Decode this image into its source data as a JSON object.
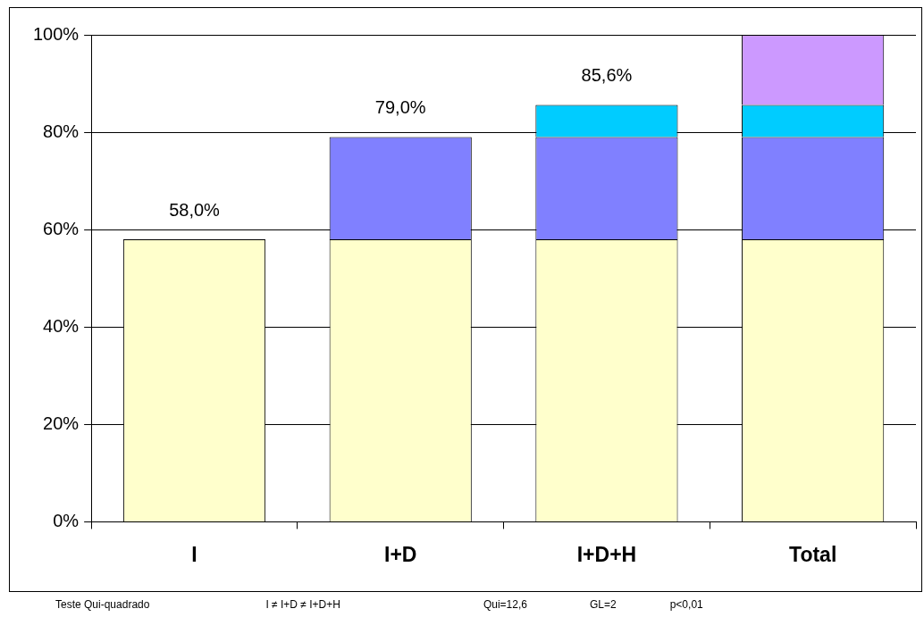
{
  "chart_data": {
    "type": "bar",
    "stacked": true,
    "categories": [
      "I",
      "I+D",
      "I+D+H",
      "Total"
    ],
    "series": [
      {
        "color": "#ffffcc",
        "values": [
          58,
          58,
          58,
          58
        ]
      },
      {
        "color": "#8080ff",
        "values": [
          null,
          21,
          21,
          21
        ]
      },
      {
        "color": "#00ccff",
        "values": [
          null,
          null,
          6.6,
          6.6
        ]
      },
      {
        "color": "#cc99ff",
        "values": [
          null,
          null,
          null,
          14.4
        ]
      }
    ],
    "totals": [
      "58,0%",
      "79,0%",
      "85,6%",
      null
    ],
    "ylim": [
      0,
      100
    ],
    "yticks": [
      {
        "value": 0,
        "label": "0%"
      },
      {
        "value": 20,
        "label": "20%"
      },
      {
        "value": 40,
        "label": "40%"
      },
      {
        "value": 60,
        "label": "60%"
      },
      {
        "value": 80,
        "label": "80%"
      },
      {
        "value": 100,
        "label": "100%"
      }
    ],
    "grid": "y",
    "legend": false,
    "annotations": [
      "Teste Qui-quadrado",
      "I ≠ I+D ≠ I+D+H",
      "Qui=12,6",
      "GL=2",
      "p<0,01"
    ]
  }
}
